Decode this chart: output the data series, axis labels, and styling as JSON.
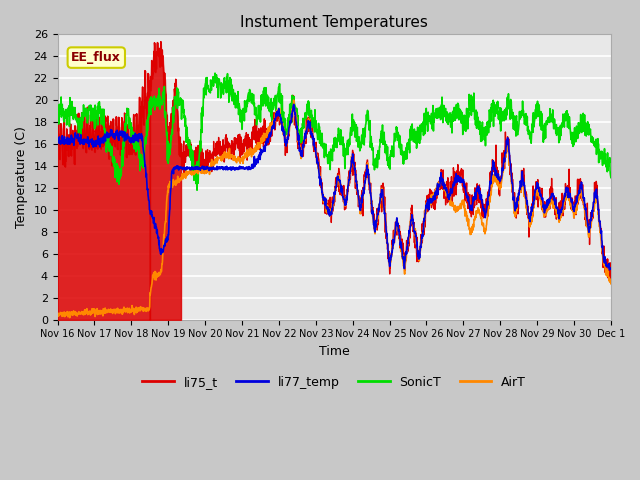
{
  "title": "Instument Temperatures",
  "xlabel": "Time",
  "ylabel": "Temperature (C)",
  "ylim": [
    0,
    26
  ],
  "yticks": [
    0,
    2,
    4,
    6,
    8,
    10,
    12,
    14,
    16,
    18,
    20,
    22,
    24,
    26
  ],
  "xtick_labels": [
    "Nov 16",
    "Nov 17",
    "Nov 18",
    "Nov 19",
    "Nov 20",
    "Nov 21",
    "Nov 22",
    "Nov 23",
    "Nov 24",
    "Nov 25",
    "Nov 26",
    "Nov 27",
    "Nov 28",
    "Nov 29",
    "Nov 30",
    "Dec 1"
  ],
  "annotation_text": "EE_flux",
  "colors": {
    "li75_t": "#dd0000",
    "li77_temp": "#0000dd",
    "SonicT": "#00dd00",
    "AirT": "#ff8800"
  },
  "legend_labels": [
    "li75_t",
    "li77_temp",
    "SonicT",
    "AirT"
  ],
  "fig_bg": "#c8c8c8",
  "plot_bg": "#e8e8e8",
  "grid_color": "#ffffff"
}
